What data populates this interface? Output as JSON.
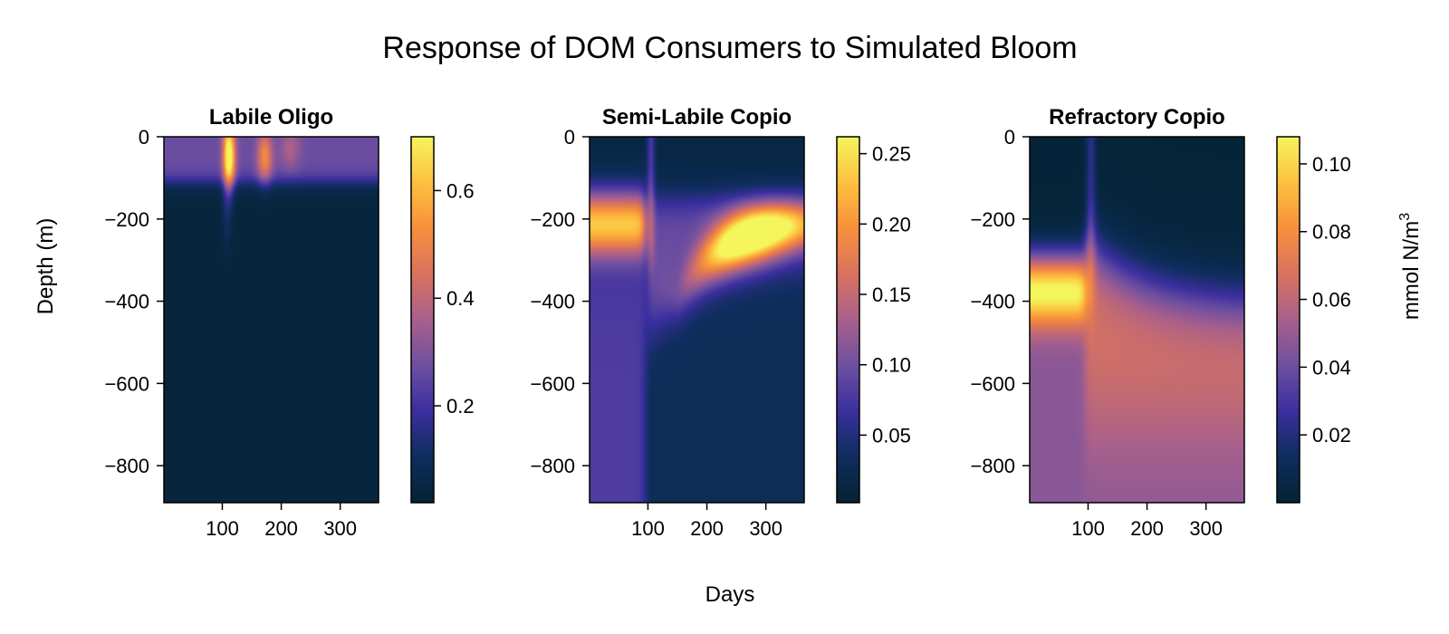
{
  "figure": {
    "title": "Response of DOM Consumers to Simulated Bloom",
    "xlabel": "Days",
    "ylabel": "Depth (m)",
    "colorbar_label": "mmol N/m",
    "colorbar_label_sup": "3"
  },
  "chart_data": [
    {
      "type": "heatmap",
      "title": "Labile Oligo",
      "x_ticks": [
        100,
        200,
        300
      ],
      "y_ticks": [
        0,
        -200,
        -400,
        -600,
        -800
      ],
      "xlim": [
        1,
        365
      ],
      "ylim": [
        -890,
        0
      ],
      "colorbar_ticks": [
        "0.2",
        "0.4",
        "0.6"
      ],
      "colorbar_range": [
        0.02,
        0.7
      ],
      "colormap": [
        "#042333",
        "#0f2d5c",
        "#3a2f9e",
        "#6e4fa0",
        "#a8608c",
        "#d9725e",
        "#f7903c",
        "#fdc040",
        "#f5f55c"
      ]
    },
    {
      "type": "heatmap",
      "title": "Semi-Labile Copio",
      "x_ticks": [
        100,
        200,
        300
      ],
      "y_ticks": [
        0,
        -200,
        -400,
        -600,
        -800
      ],
      "xlim": [
        1,
        365
      ],
      "ylim": [
        -890,
        0
      ],
      "colorbar_ticks": [
        "0.05",
        "0.10",
        "0.15",
        "0.20",
        "0.25"
      ],
      "colorbar_range": [
        0.002,
        0.262
      ],
      "colormap": [
        "#042333",
        "#0f2d5c",
        "#3a2f9e",
        "#6e4fa0",
        "#a8608c",
        "#d9725e",
        "#f7903c",
        "#fdc040",
        "#f5f55c"
      ]
    },
    {
      "type": "heatmap",
      "title": "Refractory Copio",
      "x_ticks": [
        100,
        200,
        300
      ],
      "y_ticks": [
        0,
        -200,
        -400,
        -600,
        -800
      ],
      "xlim": [
        1,
        365
      ],
      "ylim": [
        -890,
        0
      ],
      "colorbar_ticks": [
        "0.02",
        "0.04",
        "0.06",
        "0.08",
        "0.10"
      ],
      "colorbar_range": [
        0.0,
        0.108
      ],
      "colormap": [
        "#042333",
        "#0f2d5c",
        "#3a2f9e",
        "#6e4fa0",
        "#a8608c",
        "#d9725e",
        "#f7903c",
        "#fdc040",
        "#f5f55c"
      ]
    }
  ]
}
